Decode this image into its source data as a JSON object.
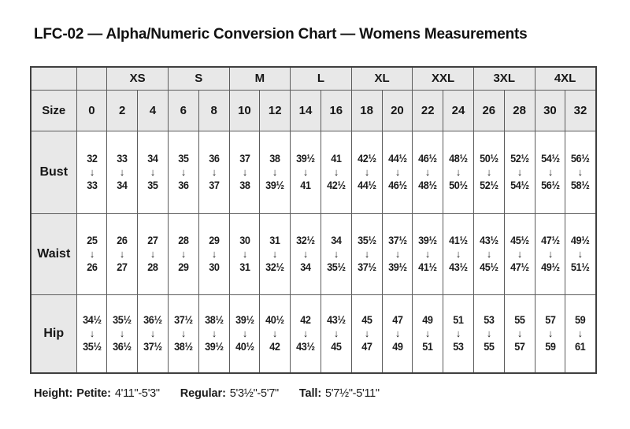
{
  "title": "LFC-02 — Alpha/Numeric Conversion Chart — Womens Measurements",
  "colors": {
    "header_bg": "#e8e8e8",
    "grid_line": "#5c5c5c",
    "outer_border": "#3f3f3f",
    "text": "#1b1b1b"
  },
  "table": {
    "size_label": "Size",
    "arrow_glyph": "↓",
    "alpha_groups": [
      {
        "label": "XS"
      },
      {
        "label": "S"
      },
      {
        "label": "M"
      },
      {
        "label": "L"
      },
      {
        "label": "XL"
      },
      {
        "label": "XXL"
      },
      {
        "label": "3XL"
      },
      {
        "label": "4XL"
      }
    ],
    "sizes": [
      "0",
      "2",
      "4",
      "6",
      "8",
      "10",
      "12",
      "14",
      "16",
      "18",
      "20",
      "22",
      "24",
      "26",
      "28",
      "30",
      "32"
    ],
    "rows": [
      {
        "label": "Bust",
        "cells": [
          {
            "from": "32",
            "to": "33"
          },
          {
            "from": "33",
            "to": "34"
          },
          {
            "from": "34",
            "to": "35"
          },
          {
            "from": "35",
            "to": "36"
          },
          {
            "from": "36",
            "to": "37"
          },
          {
            "from": "37",
            "to": "38"
          },
          {
            "from": "38",
            "to": "39½"
          },
          {
            "from": "39½",
            "to": "41"
          },
          {
            "from": "41",
            "to": "42½"
          },
          {
            "from": "42½",
            "to": "44½"
          },
          {
            "from": "44½",
            "to": "46½"
          },
          {
            "from": "46½",
            "to": "48½"
          },
          {
            "from": "48½",
            "to": "50½"
          },
          {
            "from": "50½",
            "to": "52½"
          },
          {
            "from": "52½",
            "to": "54½"
          },
          {
            "from": "54½",
            "to": "56½"
          },
          {
            "from": "56½",
            "to": "58½"
          }
        ]
      },
      {
        "label": "Waist",
        "cells": [
          {
            "from": "25",
            "to": "26"
          },
          {
            "from": "26",
            "to": "27"
          },
          {
            "from": "27",
            "to": "28"
          },
          {
            "from": "28",
            "to": "29"
          },
          {
            "from": "29",
            "to": "30"
          },
          {
            "from": "30",
            "to": "31"
          },
          {
            "from": "31",
            "to": "32½"
          },
          {
            "from": "32½",
            "to": "34"
          },
          {
            "from": "34",
            "to": "35½"
          },
          {
            "from": "35½",
            "to": "37½"
          },
          {
            "from": "37½",
            "to": "39½"
          },
          {
            "from": "39½",
            "to": "41½"
          },
          {
            "from": "41½",
            "to": "43½"
          },
          {
            "from": "43½",
            "to": "45½"
          },
          {
            "from": "45½",
            "to": "47½"
          },
          {
            "from": "47½",
            "to": "49½"
          },
          {
            "from": "49½",
            "to": "51½"
          }
        ]
      },
      {
        "label": "Hip",
        "cells": [
          {
            "from": "34½",
            "to": "35½"
          },
          {
            "from": "35½",
            "to": "36½"
          },
          {
            "from": "36½",
            "to": "37½"
          },
          {
            "from": "37½",
            "to": "38½"
          },
          {
            "from": "38½",
            "to": "39½"
          },
          {
            "from": "39½",
            "to": "40½"
          },
          {
            "from": "40½",
            "to": "42"
          },
          {
            "from": "42",
            "to": "43½"
          },
          {
            "from": "43½",
            "to": "45"
          },
          {
            "from": "45",
            "to": "47"
          },
          {
            "from": "47",
            "to": "49"
          },
          {
            "from": "49",
            "to": "51"
          },
          {
            "from": "51",
            "to": "53"
          },
          {
            "from": "53",
            "to": "55"
          },
          {
            "from": "55",
            "to": "57"
          },
          {
            "from": "57",
            "to": "59"
          },
          {
            "from": "59",
            "to": "61"
          }
        ]
      }
    ]
  },
  "footer": {
    "height_label": "Height:",
    "entries": [
      {
        "label": "Petite:",
        "range": "4'11\"-5'3\""
      },
      {
        "label": "Regular:",
        "range": "5'3½\"-5'7\""
      },
      {
        "label": "Tall:",
        "range": "5'7½\"-5'11\""
      }
    ]
  }
}
